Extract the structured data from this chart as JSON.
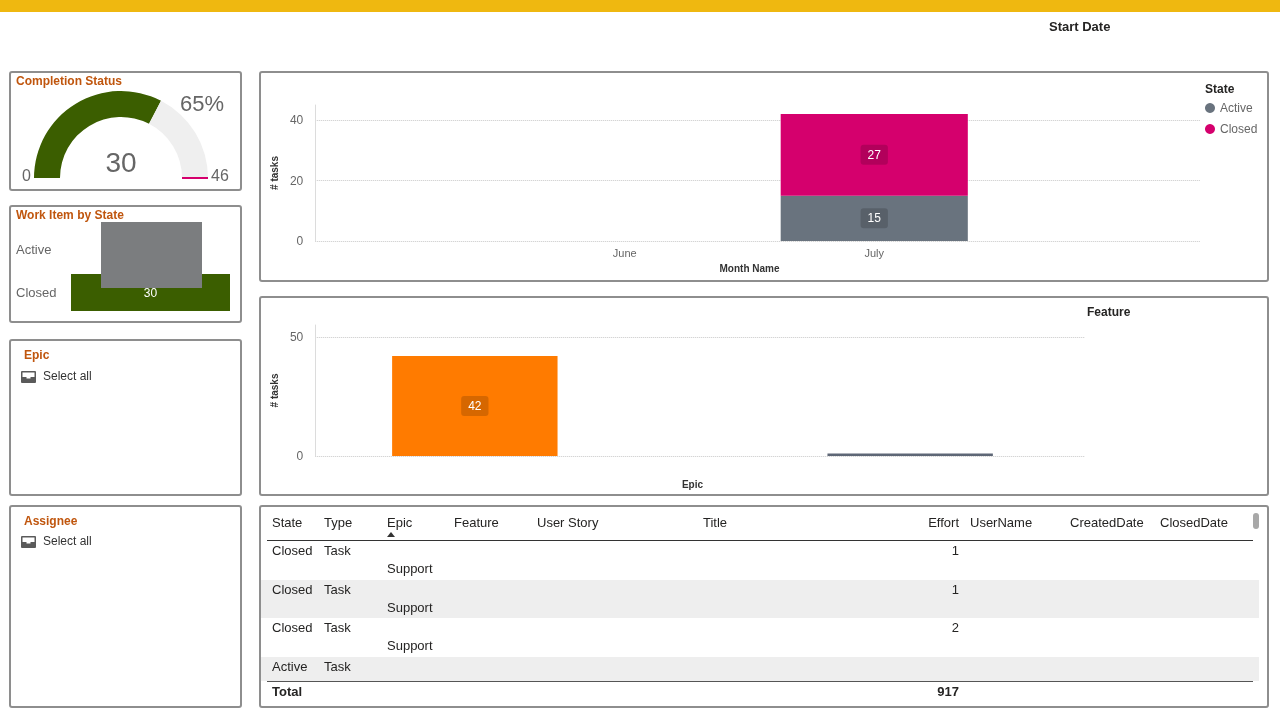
{
  "chart_data": [
    {
      "type": "other",
      "annotations": [
        "Start Date"
      ]
    },
    {
      "type": "donut",
      "title": "Completion Status",
      "categories": [
        null,
        null
      ],
      "values": [
        30,
        16
      ],
      "colors": [
        "#3b5e00",
        "#efefef"
      ],
      "value_labels": [
        "30",
        null
      ],
      "annotations": [
        "65%",
        "0",
        "46"
      ]
    },
    {
      "type": "bar",
      "stacked": true,
      "categories": [
        "June",
        "July"
      ],
      "series": [
        {
          "name": "Active",
          "color": "#69737e",
          "values": [
            null,
            15
          ]
        },
        {
          "name": "Closed",
          "color": "#d5006d",
          "values": [
            null,
            27
          ]
        }
      ],
      "xlabel": "Month Name",
      "ylabel": "# tasks",
      "ylim": [
        0,
        45
      ],
      "yticks": [
        0,
        20,
        40
      ],
      "grid": "y",
      "legend": "top right",
      "legend_title": "State",
      "data_labels": true
    },
    {
      "type": "bar",
      "title": "Work Item by State",
      "orientation": "horizontal",
      "categories": [
        "Active",
        "Closed"
      ],
      "values": [
        null,
        30
      ],
      "color": "#3b5e00",
      "tick_labels": "y",
      "data_labels": true
    },
    {
      "type": "bar",
      "categories": [
        null,
        null,
        null
      ],
      "values": [
        42,
        null,
        1
      ],
      "colors": [
        "#ff7b00",
        null,
        "#5e6776"
      ],
      "value_labels": [
        "42",
        null,
        null
      ],
      "xlabel": "Epic",
      "ylabel": "# tasks",
      "ylim": [
        0,
        55
      ],
      "yticks": [
        0,
        50
      ],
      "grid": "y",
      "legend_title": "Feature"
    },
    {
      "type": "other",
      "title": "Epic",
      "annotations": [
        "Select all"
      ]
    },
    {
      "type": "other",
      "title": "Assignee",
      "annotations": [
        "Select all"
      ]
    },
    {
      "type": "other",
      "categories": [
        "State",
        "Type",
        "Epic",
        "Feature",
        "User Story",
        "Title",
        "Effort",
        "UserName",
        "CreatedDate",
        "ClosedDate"
      ],
      "cell_labels": [
        [
          "Closed",
          "Task",
          "Support",
          null,
          null,
          null,
          "1",
          null,
          null,
          null
        ],
        [
          "Closed",
          "Task",
          "Support",
          null,
          null,
          null,
          "1",
          null,
          null,
          null
        ],
        [
          "Closed",
          "Task",
          "Support",
          null,
          null,
          null,
          "2",
          null,
          null,
          null
        ],
        [
          "Active",
          "Task",
          null,
          null,
          null,
          null,
          null,
          null,
          null,
          null
        ],
        [
          "Total",
          null,
          null,
          null,
          null,
          null,
          "917",
          null,
          null,
          null
        ]
      ]
    }
  ]
}
